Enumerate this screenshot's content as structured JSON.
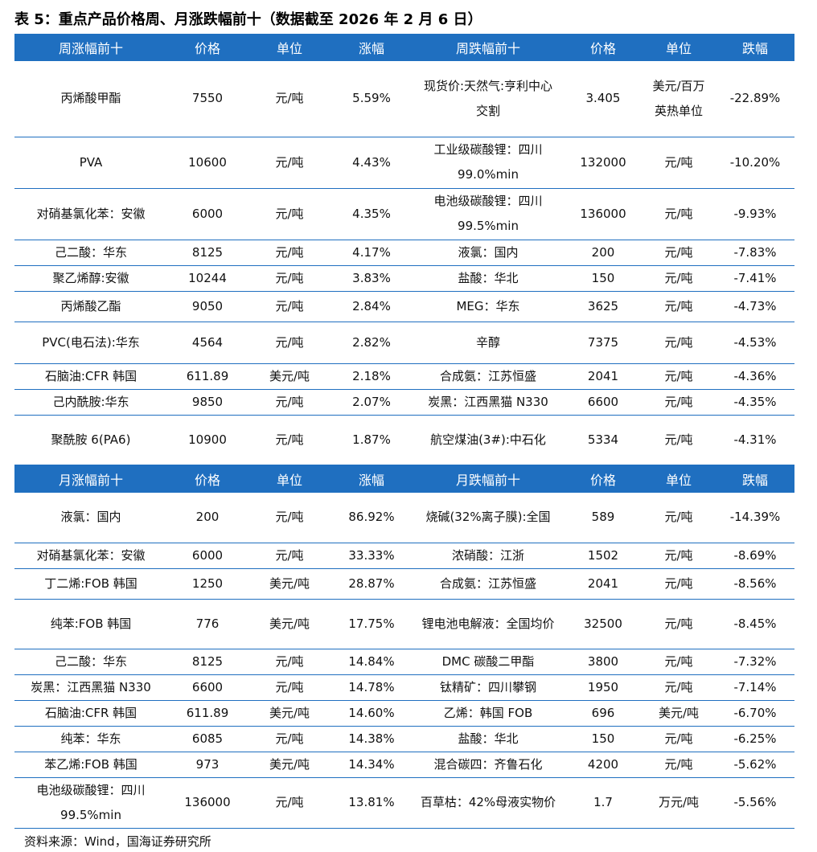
{
  "title": "表 5：重点产品价格周、月涨跌幅前十（数据截至 2026 年 2 月 6 日）",
  "weekly_table": {
    "headers": [
      "周涨幅前十",
      "价格",
      "单位",
      "涨幅",
      "周跌幅前十",
      "价格",
      "单位",
      "跌幅"
    ],
    "rows": [
      [
        "丙烯酸甲酯",
        "7550",
        "元/吨",
        "5.59%",
        "现货价:天然气:亨利中心交割",
        "3.405",
        "美元/百万英热单位",
        "-22.89%"
      ],
      [
        "PVA",
        "10600",
        "元/吨",
        "4.43%",
        "工业级碳酸锂：四川 99.0%min",
        "132000",
        "元/吨",
        "-10.20%"
      ],
      [
        "对硝基氯化苯：安徽",
        "6000",
        "元/吨",
        "4.35%",
        "电池级碳酸锂：四川 99.5%min",
        "136000",
        "元/吨",
        "-9.93%"
      ],
      [
        "己二酸：华东",
        "8125",
        "元/吨",
        "4.17%",
        "液氯：国内",
        "200",
        "元/吨",
        "-7.83%"
      ],
      [
        "聚乙烯醇:安徽",
        "10244",
        "元/吨",
        "3.83%",
        "盐酸：华北",
        "150",
        "元/吨",
        "-7.41%"
      ],
      [
        "丙烯酸乙酯",
        "9050",
        "元/吨",
        "2.84%",
        "MEG：华东",
        "3625",
        "元/吨",
        "-4.73%"
      ],
      [
        "PVC(电石法):华东",
        "4564",
        "元/吨",
        "2.82%",
        "辛醇",
        "7375",
        "元/吨",
        "-4.53%"
      ],
      [
        "石脑油:CFR 韩国",
        "611.89",
        "美元/吨",
        "2.18%",
        "合成氨：江苏恒盛",
        "2041",
        "元/吨",
        "-4.36%"
      ],
      [
        "己内酰胺:华东",
        "9850",
        "元/吨",
        "2.07%",
        "炭黑：江西黑猫 N330",
        "6600",
        "元/吨",
        "-4.35%"
      ],
      [
        "聚酰胺 6(PA6)",
        "10900",
        "元/吨",
        "1.87%",
        "航空煤油(3#):中石化",
        "5334",
        "元/吨",
        "-4.31%"
      ]
    ]
  },
  "monthly_table": {
    "headers": [
      "月涨幅前十",
      "价格",
      "单位",
      "涨幅",
      "月跌幅前十",
      "价格",
      "单位",
      "跌幅"
    ],
    "rows": [
      [
        "液氯：国内",
        "200",
        "元/吨",
        "86.92%",
        "烧碱(32%离子膜):全国",
        "589",
        "元/吨",
        "-14.39%"
      ],
      [
        "对硝基氯化苯：安徽",
        "6000",
        "元/吨",
        "33.33%",
        "浓硝酸：江浙",
        "1502",
        "元/吨",
        "-8.69%"
      ],
      [
        "丁二烯:FOB 韩国",
        "1250",
        "美元/吨",
        "28.87%",
        "合成氨：江苏恒盛",
        "2041",
        "元/吨",
        "-8.56%"
      ],
      [
        "纯苯:FOB 韩国",
        "776",
        "美元/吨",
        "17.75%",
        "锂电池电解液：全国均价",
        "32500",
        "元/吨",
        "-8.45%"
      ],
      [
        "己二酸：华东",
        "8125",
        "元/吨",
        "14.84%",
        "DMC 碳酸二甲酯",
        "3800",
        "元/吨",
        "-7.32%"
      ],
      [
        "炭黑：江西黑猫 N330",
        "6600",
        "元/吨",
        "14.78%",
        "钛精矿：四川攀钢",
        "1950",
        "元/吨",
        "-7.14%"
      ],
      [
        "石脑油:CFR 韩国",
        "611.89",
        "美元/吨",
        "14.60%",
        "乙烯：韩国 FOB",
        "696",
        "美元/吨",
        "-6.70%"
      ],
      [
        "纯苯：华东",
        "6085",
        "元/吨",
        "14.38%",
        "盐酸：华北",
        "150",
        "元/吨",
        "-6.25%"
      ],
      [
        "苯乙烯:FOB 韩国",
        "973",
        "美元/吨",
        "14.34%",
        "混合碳四：齐鲁石化",
        "4200",
        "元/吨",
        "-5.62%"
      ],
      [
        "电池级碳酸锂：四川 99.5%min",
        "136000",
        "元/吨",
        "13.81%",
        "百草枯：42%母液实物价",
        "1.7",
        "万元/吨",
        "-5.56%"
      ]
    ]
  },
  "source": "资料来源：Wind，国海证券研究所"
}
